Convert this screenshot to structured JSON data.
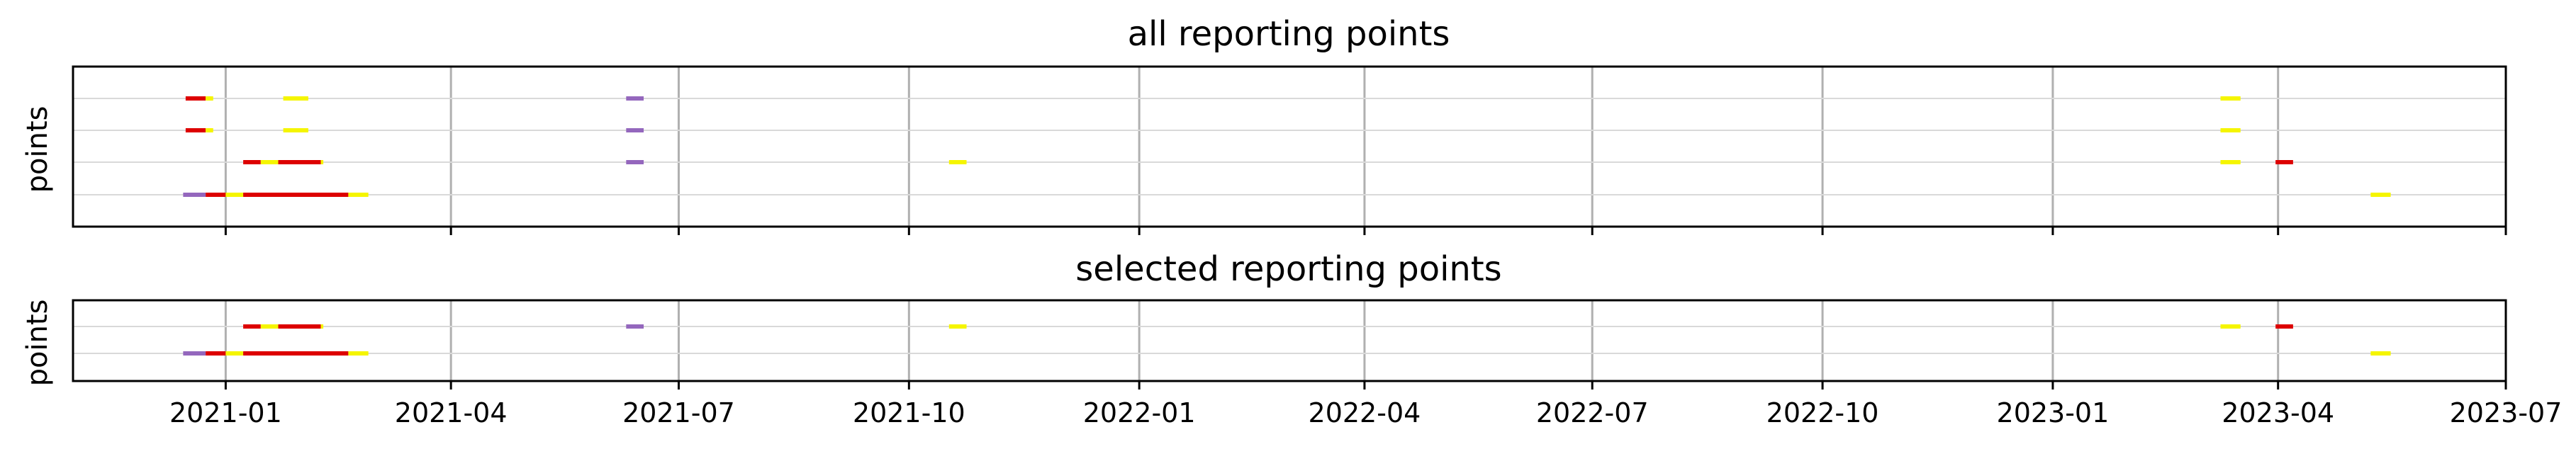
{
  "chart_data": [
    {
      "type": "timeline",
      "title": "all reporting points",
      "ylabel": "points",
      "xlim": [
        "2020-11-01",
        "2023-07-01"
      ],
      "x_ticks": [
        "2021-01",
        "2021-04",
        "2021-07",
        "2021-10",
        "2022-01",
        "2022-04",
        "2022-07",
        "2022-10",
        "2023-01",
        "2023-04",
        "2023-07"
      ],
      "x_tick_labels_visible": false,
      "grid": true,
      "lanes": 4,
      "segments": [
        {
          "lane": 1,
          "start": "2020-12-16",
          "end": "2020-12-24",
          "color": "#dd0000"
        },
        {
          "lane": 1,
          "start": "2020-12-24",
          "end": "2020-12-27",
          "color": "#f5f500"
        },
        {
          "lane": 1,
          "start": "2021-01-24",
          "end": "2021-02-03",
          "color": "#f5f500"
        },
        {
          "lane": 1,
          "start": "2021-06-10",
          "end": "2021-06-17",
          "color": "#9467bd"
        },
        {
          "lane": 1,
          "start": "2023-03-09",
          "end": "2023-03-17",
          "color": "#f5f500"
        },
        {
          "lane": 2,
          "start": "2020-12-16",
          "end": "2020-12-24",
          "color": "#dd0000"
        },
        {
          "lane": 2,
          "start": "2020-12-24",
          "end": "2020-12-27",
          "color": "#f5f500"
        },
        {
          "lane": 2,
          "start": "2021-01-24",
          "end": "2021-02-03",
          "color": "#f5f500"
        },
        {
          "lane": 2,
          "start": "2021-06-10",
          "end": "2021-06-17",
          "color": "#9467bd"
        },
        {
          "lane": 2,
          "start": "2023-03-09",
          "end": "2023-03-17",
          "color": "#f5f500"
        },
        {
          "lane": 3,
          "start": "2021-01-08",
          "end": "2021-01-15",
          "color": "#dd0000"
        },
        {
          "lane": 3,
          "start": "2021-01-15",
          "end": "2021-01-22",
          "color": "#f5f500"
        },
        {
          "lane": 3,
          "start": "2021-01-22",
          "end": "2021-02-08",
          "color": "#dd0000"
        },
        {
          "lane": 3,
          "start": "2021-02-08",
          "end": "2021-02-09",
          "color": "#f5f500"
        },
        {
          "lane": 3,
          "start": "2021-06-10",
          "end": "2021-06-17",
          "color": "#9467bd"
        },
        {
          "lane": 3,
          "start": "2021-10-17",
          "end": "2021-10-24",
          "color": "#f5f500"
        },
        {
          "lane": 3,
          "start": "2023-03-09",
          "end": "2023-03-17",
          "color": "#f5f500"
        },
        {
          "lane": 3,
          "start": "2023-03-31",
          "end": "2023-04-07",
          "color": "#dd0000"
        },
        {
          "lane": 4,
          "start": "2020-12-15",
          "end": "2020-12-24",
          "color": "#9467bd"
        },
        {
          "lane": 4,
          "start": "2020-12-24",
          "end": "2021-01-01",
          "color": "#dd0000"
        },
        {
          "lane": 4,
          "start": "2021-01-01",
          "end": "2021-01-08",
          "color": "#f5f500"
        },
        {
          "lane": 4,
          "start": "2021-01-08",
          "end": "2021-02-19",
          "color": "#dd0000"
        },
        {
          "lane": 4,
          "start": "2021-02-19",
          "end": "2021-02-27",
          "color": "#f5f500"
        },
        {
          "lane": 4,
          "start": "2023-05-08",
          "end": "2023-05-16",
          "color": "#f5f500"
        }
      ]
    },
    {
      "type": "timeline",
      "title": "selected reporting points",
      "ylabel": "points",
      "xlim": [
        "2020-11-01",
        "2023-07-01"
      ],
      "x_ticks": [
        "2021-01",
        "2021-04",
        "2021-07",
        "2021-10",
        "2022-01",
        "2022-04",
        "2022-07",
        "2022-10",
        "2023-01",
        "2023-04",
        "2023-07"
      ],
      "x_tick_labels_visible": true,
      "grid": true,
      "lanes": 2,
      "segments": [
        {
          "lane": 1,
          "start": "2021-01-08",
          "end": "2021-01-15",
          "color": "#dd0000"
        },
        {
          "lane": 1,
          "start": "2021-01-15",
          "end": "2021-01-22",
          "color": "#f5f500"
        },
        {
          "lane": 1,
          "start": "2021-01-22",
          "end": "2021-02-08",
          "color": "#dd0000"
        },
        {
          "lane": 1,
          "start": "2021-02-08",
          "end": "2021-02-09",
          "color": "#f5f500"
        },
        {
          "lane": 1,
          "start": "2021-06-10",
          "end": "2021-06-17",
          "color": "#9467bd"
        },
        {
          "lane": 1,
          "start": "2021-10-17",
          "end": "2021-10-24",
          "color": "#f5f500"
        },
        {
          "lane": 1,
          "start": "2023-03-09",
          "end": "2023-03-17",
          "color": "#f5f500"
        },
        {
          "lane": 1,
          "start": "2023-03-31",
          "end": "2023-04-07",
          "color": "#dd0000"
        },
        {
          "lane": 2,
          "start": "2020-12-15",
          "end": "2020-12-24",
          "color": "#9467bd"
        },
        {
          "lane": 2,
          "start": "2020-12-24",
          "end": "2021-01-01",
          "color": "#dd0000"
        },
        {
          "lane": 2,
          "start": "2021-01-01",
          "end": "2021-01-08",
          "color": "#f5f500"
        },
        {
          "lane": 2,
          "start": "2021-01-08",
          "end": "2021-02-19",
          "color": "#dd0000"
        },
        {
          "lane": 2,
          "start": "2021-02-19",
          "end": "2021-02-27",
          "color": "#f5f500"
        },
        {
          "lane": 2,
          "start": "2023-05-08",
          "end": "2023-05-16",
          "color": "#f5f500"
        }
      ]
    }
  ]
}
